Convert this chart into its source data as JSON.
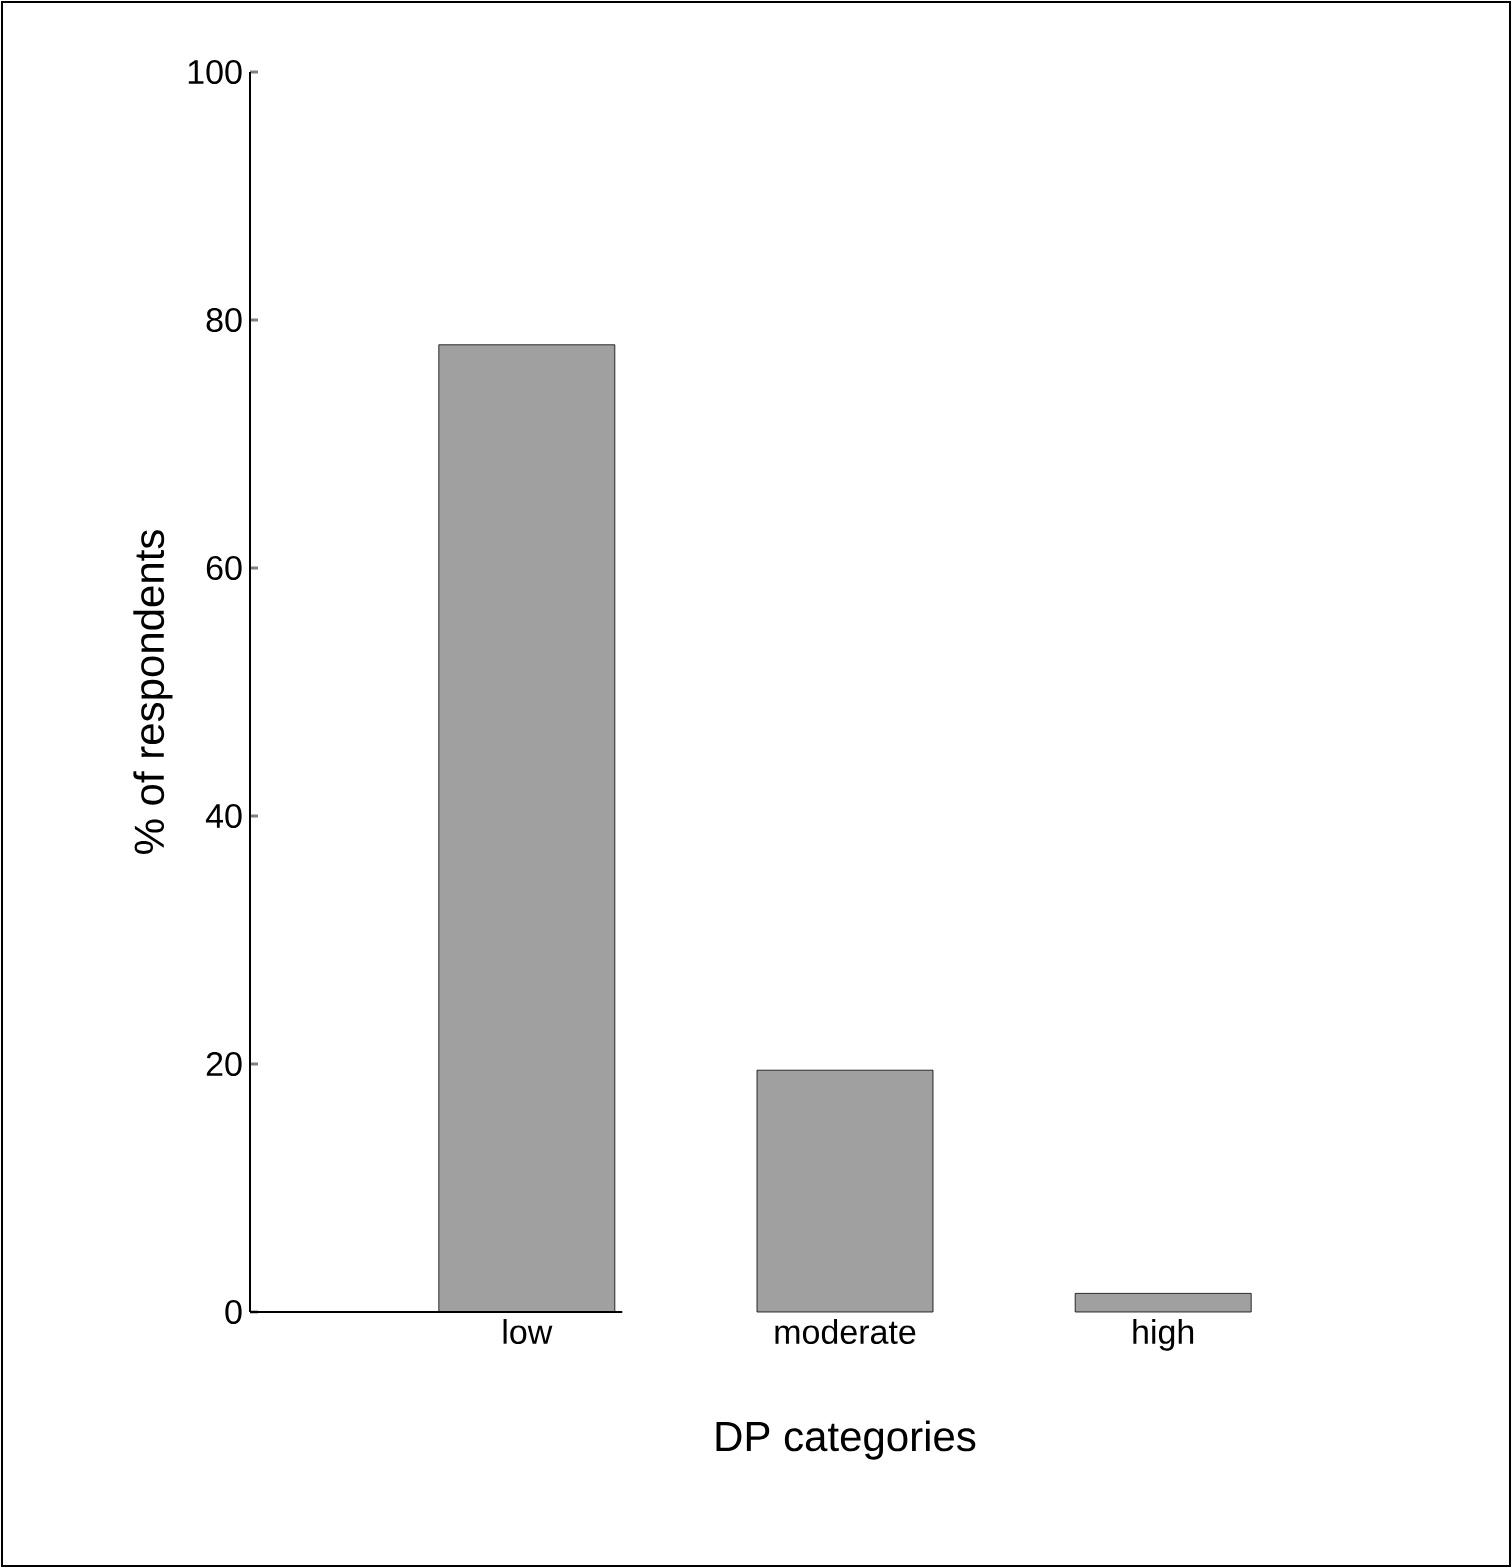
{
  "chart_data": {
    "type": "bar",
    "xlabel": "DP categories",
    "ylabel": "% of respondents",
    "categories": [
      "low",
      "moderate",
      "high"
    ],
    "values": [
      78,
      19.5,
      1.5
    ],
    "color": "#a0a0a0",
    "ylim": [
      0,
      100
    ],
    "yticks": [
      0,
      20,
      40,
      60,
      80,
      100
    ]
  }
}
